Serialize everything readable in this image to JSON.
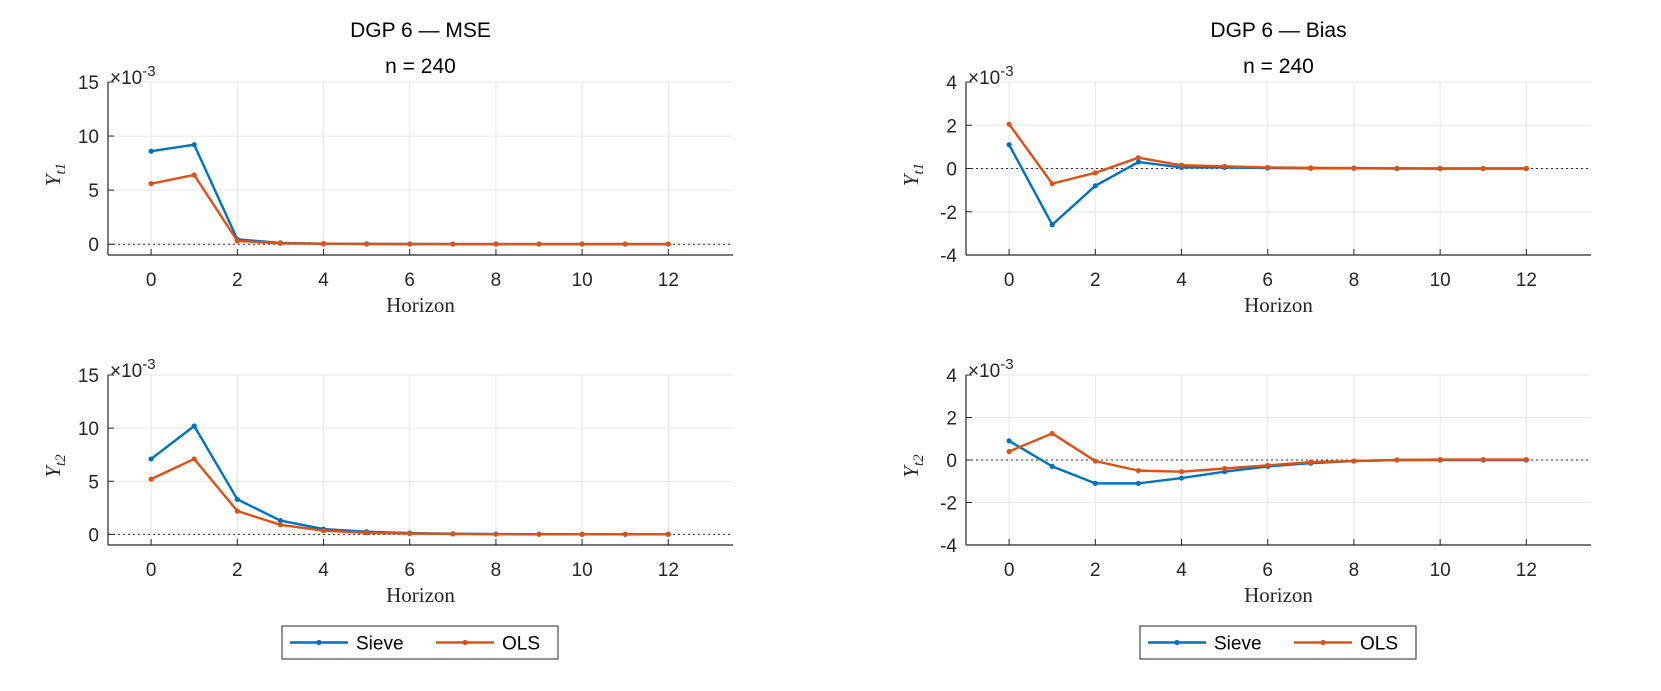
{
  "colors": {
    "sieve": "#0072BD",
    "ols": "#D95319",
    "grid": "#e6e6e6",
    "axis": "#262626"
  },
  "chart_data": [
    {
      "type": "line",
      "title": "DGP 6  —  MSE",
      "subtitle": "n = 240",
      "xlabel": "Horizon",
      "ylabel": "Y",
      "ylabel_sub": "t1",
      "exponent_base": "×10",
      "exponent_power": "-3",
      "xlim": [
        -1,
        13.5
      ],
      "ylim": [
        -1,
        15
      ],
      "xticks": [
        0,
        2,
        4,
        6,
        8,
        10,
        12
      ],
      "yticks": [
        0,
        5,
        10,
        15
      ],
      "grid": true,
      "x": [
        0,
        1,
        2,
        3,
        4,
        5,
        6,
        7,
        8,
        9,
        10,
        11,
        12
      ],
      "series": [
        {
          "name": "Sieve",
          "values": [
            8.6,
            9.2,
            0.45,
            0.12,
            0.05,
            0.03,
            0.02,
            0.01,
            0.01,
            0.01,
            0.01,
            0.01,
            0.01
          ]
        },
        {
          "name": "OLS",
          "values": [
            5.6,
            6.4,
            0.3,
            0.08,
            0.04,
            0.02,
            0.01,
            0.01,
            0.01,
            0.01,
            0.01,
            0.01,
            0.01
          ]
        }
      ]
    },
    {
      "type": "line",
      "title": "DGP 6  —  Bias",
      "subtitle": "n = 240",
      "xlabel": "Horizon",
      "ylabel": "Y",
      "ylabel_sub": "t1",
      "exponent_base": "×10",
      "exponent_power": "-3",
      "xlim": [
        -1,
        13.5
      ],
      "ylim": [
        -4,
        4
      ],
      "xticks": [
        0,
        2,
        4,
        6,
        8,
        10,
        12
      ],
      "yticks": [
        -4,
        -2,
        0,
        2,
        4
      ],
      "grid": true,
      "x": [
        0,
        1,
        2,
        3,
        4,
        5,
        6,
        7,
        8,
        9,
        10,
        11,
        12
      ],
      "series": [
        {
          "name": "Sieve",
          "values": [
            1.1,
            -2.6,
            -0.8,
            0.3,
            0.05,
            0.05,
            0.02,
            0.01,
            0.01,
            0.0,
            0.0,
            0.0,
            0.0
          ]
        },
        {
          "name": "OLS",
          "values": [
            2.05,
            -0.7,
            -0.2,
            0.5,
            0.15,
            0.1,
            0.05,
            0.03,
            0.02,
            0.01,
            0.0,
            0.0,
            0.0
          ]
        }
      ]
    },
    {
      "type": "line",
      "title": "",
      "subtitle": "",
      "xlabel": "Horizon",
      "ylabel": "Y",
      "ylabel_sub": "t2",
      "exponent_base": "×10",
      "exponent_power": "-3",
      "xlim": [
        -1,
        13.5
      ],
      "ylim": [
        -1,
        15
      ],
      "xticks": [
        0,
        2,
        4,
        6,
        8,
        10,
        12
      ],
      "yticks": [
        0,
        5,
        10,
        15
      ],
      "grid": true,
      "x": [
        0,
        1,
        2,
        3,
        4,
        5,
        6,
        7,
        8,
        9,
        10,
        11,
        12
      ],
      "series": [
        {
          "name": "Sieve",
          "values": [
            7.1,
            10.2,
            3.3,
            1.3,
            0.5,
            0.25,
            0.12,
            0.06,
            0.03,
            0.02,
            0.01,
            0.01,
            0.01
          ]
        },
        {
          "name": "OLS",
          "values": [
            5.2,
            7.1,
            2.2,
            0.9,
            0.35,
            0.15,
            0.08,
            0.04,
            0.02,
            0.01,
            0.01,
            0.01,
            0.01
          ]
        }
      ]
    },
    {
      "type": "line",
      "title": "",
      "subtitle": "",
      "xlabel": "Horizon",
      "ylabel": "Y",
      "ylabel_sub": "t2",
      "exponent_base": "×10",
      "exponent_power": "-3",
      "xlim": [
        -1,
        13.5
      ],
      "ylim": [
        -4,
        4
      ],
      "xticks": [
        0,
        2,
        4,
        6,
        8,
        10,
        12
      ],
      "yticks": [
        -4,
        -2,
        0,
        2,
        4
      ],
      "grid": true,
      "x": [
        0,
        1,
        2,
        3,
        4,
        5,
        6,
        7,
        8,
        9,
        10,
        11,
        12
      ],
      "series": [
        {
          "name": "Sieve",
          "values": [
            0.9,
            -0.3,
            -1.1,
            -1.1,
            -0.85,
            -0.55,
            -0.3,
            -0.15,
            -0.05,
            0.0,
            0.0,
            0.0,
            0.0
          ]
        },
        {
          "name": "OLS",
          "values": [
            0.4,
            1.25,
            -0.05,
            -0.5,
            -0.55,
            -0.4,
            -0.25,
            -0.1,
            -0.05,
            0.0,
            0.02,
            0.02,
            0.02
          ]
        }
      ]
    }
  ],
  "legends": [
    {
      "items": [
        "Sieve",
        "OLS"
      ]
    },
    {
      "items": [
        "Sieve",
        "OLS"
      ]
    }
  ]
}
